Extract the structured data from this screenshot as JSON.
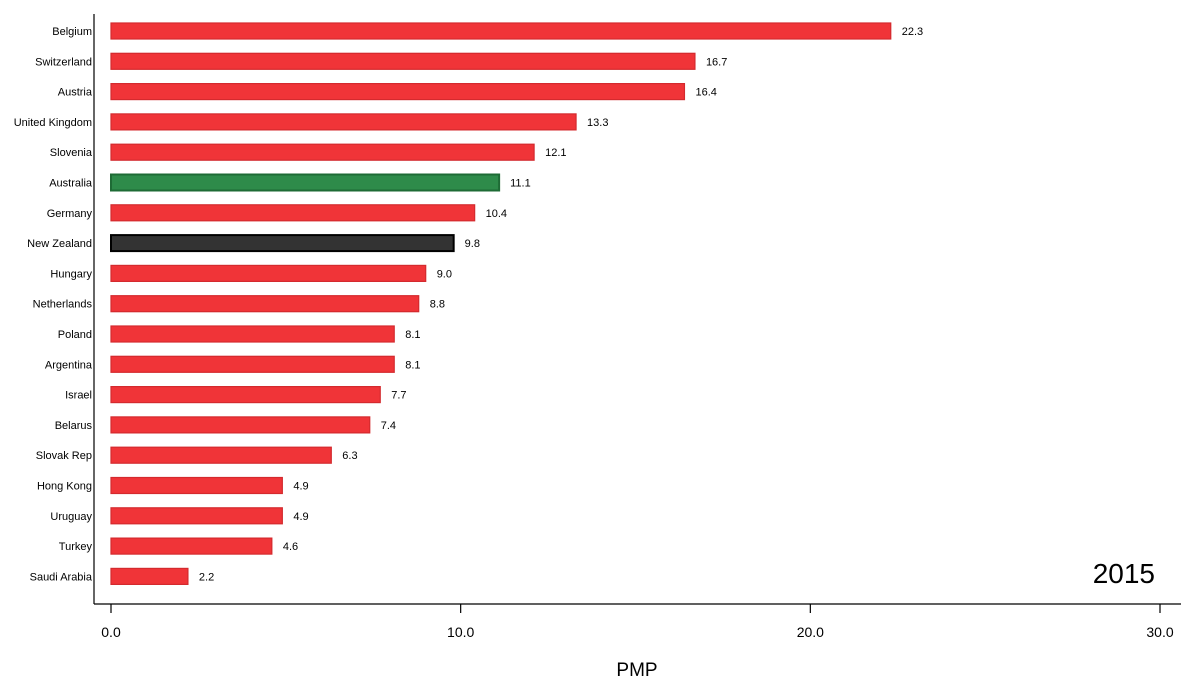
{
  "chart_data": {
    "type": "bar",
    "orientation": "horizontal",
    "categories": [
      "Belgium",
      "Switzerland",
      "Austria",
      "United Kingdom",
      "Slovenia",
      "Australia",
      "Germany",
      "New Zealand",
      "Hungary",
      "Netherlands",
      "Poland",
      "Argentina",
      "Israel",
      "Belarus",
      "Slovak Rep",
      "Hong Kong",
      "Uruguay",
      "Turkey",
      "Saudi Arabia"
    ],
    "values": [
      22.3,
      16.7,
      16.4,
      13.3,
      12.1,
      11.1,
      10.4,
      9.8,
      9.0,
      8.8,
      8.1,
      8.1,
      7.7,
      7.4,
      6.3,
      4.9,
      4.9,
      4.6,
      2.2
    ],
    "value_labels": [
      "22.3",
      "16.7",
      "16.4",
      "13.3",
      "12.1",
      "11.1",
      "10.4",
      "9.8",
      "9.0",
      "8.8",
      "8.1",
      "8.1",
      "7.7",
      "7.4",
      "6.3",
      "4.9",
      "4.9",
      "4.6",
      "2.2"
    ],
    "highlight": {
      "Australia": "#2e8b4a",
      "New Zealand": "#333333"
    },
    "bar_color": "#f03438",
    "bar_border_color": "#d42a2e",
    "highlight_border": {
      "Australia": "#1e6b35",
      "New Zealand": "#000000"
    },
    "xlabel": "PMP",
    "ylabel": "",
    "xlim": [
      0,
      30
    ],
    "xticks": [
      0,
      10,
      20,
      30
    ],
    "xtick_labels": [
      "0.0",
      "10.0",
      "20.0",
      "30.0"
    ],
    "annotation": "2015",
    "grid": false
  }
}
